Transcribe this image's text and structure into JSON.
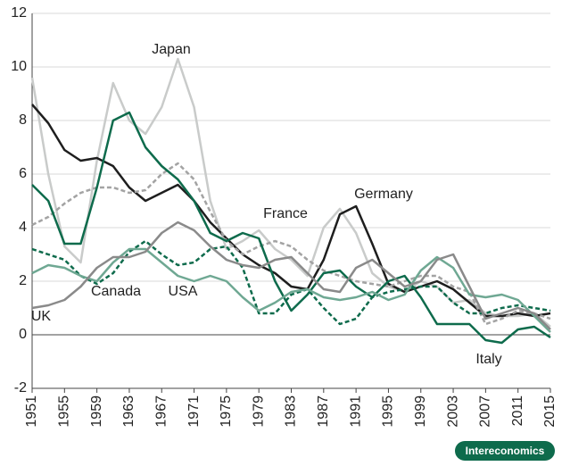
{
  "chart_data": {
    "type": "line",
    "x": [
      1951,
      1953,
      1955,
      1957,
      1959,
      1961,
      1963,
      1965,
      1967,
      1969,
      1971,
      1973,
      1975,
      1977,
      1979,
      1981,
      1983,
      1985,
      1987,
      1989,
      1991,
      1993,
      1995,
      1997,
      1999,
      2001,
      2003,
      2005,
      2007,
      2009,
      2011,
      2013,
      2015
    ],
    "xlim": [
      1951,
      2015
    ],
    "xticks": [
      1951,
      1955,
      1959,
      1963,
      1967,
      1971,
      1975,
      1979,
      1983,
      1987,
      1991,
      1995,
      1999,
      2003,
      2007,
      2011,
      2015
    ],
    "ylim": [
      -2,
      12
    ],
    "yticks": [
      -2,
      0,
      2,
      4,
      6,
      8,
      10,
      12
    ],
    "grid": true,
    "series": [
      {
        "name": "Japan",
        "color": "#c9cbca",
        "dash": false,
        "values": [
          9.6,
          6.0,
          3.3,
          2.7,
          6.5,
          9.4,
          8.0,
          7.5,
          8.5,
          10.3,
          8.5,
          5.0,
          3.2,
          3.5,
          3.9,
          3.2,
          2.8,
          2.2,
          4.0,
          4.7,
          3.8,
          2.3,
          1.8,
          1.6,
          2.0,
          1.8,
          1.2,
          1.3,
          0.8,
          0.7,
          0.7,
          0.8,
          0.3
        ]
      },
      {
        "name": "Germany",
        "color": "#1e1e1e",
        "dash": false,
        "values": [
          8.6,
          7.9,
          6.9,
          6.5,
          6.6,
          6.3,
          5.5,
          5.0,
          5.3,
          5.6,
          5.0,
          4.2,
          3.6,
          3.0,
          2.6,
          2.3,
          1.8,
          1.7,
          2.8,
          4.5,
          4.8,
          3.4,
          1.9,
          1.6,
          1.8,
          2.0,
          1.7,
          1.2,
          0.7,
          0.7,
          0.8,
          0.7,
          0.8
        ]
      },
      {
        "name": "France",
        "color": "#a3a3a3",
        "dash": true,
        "values": [
          4.1,
          4.4,
          4.9,
          5.3,
          5.5,
          5.5,
          5.3,
          5.4,
          6.0,
          6.4,
          5.8,
          4.6,
          3.5,
          3.0,
          3.3,
          3.5,
          3.3,
          2.8,
          2.4,
          2.2,
          2.0,
          1.9,
          1.8,
          2.0,
          2.2,
          2.2,
          1.8,
          1.6,
          0.4,
          0.6,
          0.9,
          0.8,
          0.6
        ]
      },
      {
        "name": "Italy",
        "color": "#0e6b4c",
        "dash": false,
        "values": [
          5.6,
          5.0,
          3.4,
          3.4,
          5.5,
          8.0,
          8.3,
          7.0,
          6.3,
          5.8,
          5.0,
          3.8,
          3.5,
          3.8,
          3.6,
          2.0,
          0.9,
          1.5,
          2.3,
          2.4,
          1.8,
          1.4,
          2.0,
          2.2,
          1.4,
          0.4,
          0.4,
          0.4,
          -0.2,
          -0.3,
          0.2,
          0.3,
          -0.1
        ]
      },
      {
        "name": "Canada",
        "color": "#0e6b4c",
        "dash": true,
        "values": [
          3.2,
          3.0,
          2.8,
          2.2,
          1.9,
          2.3,
          3.1,
          3.5,
          3.0,
          2.6,
          2.7,
          3.2,
          3.3,
          2.5,
          0.8,
          0.8,
          1.5,
          1.7,
          1.0,
          0.4,
          0.6,
          1.4,
          1.6,
          1.7,
          1.8,
          1.8,
          1.2,
          0.8,
          0.8,
          1.0,
          1.1,
          1.0,
          0.9
        ]
      },
      {
        "name": "USA",
        "color": "#6fa893",
        "dash": false,
        "values": [
          2.3,
          2.6,
          2.5,
          2.2,
          2.0,
          2.7,
          3.2,
          3.2,
          2.7,
          2.2,
          2.0,
          2.2,
          2.0,
          1.4,
          0.9,
          1.2,
          1.6,
          1.7,
          1.4,
          1.3,
          1.4,
          1.6,
          1.3,
          1.5,
          2.4,
          2.9,
          2.5,
          1.5,
          1.4,
          1.5,
          1.3,
          0.7,
          0.1
        ]
      },
      {
        "name": "UK",
        "color": "#8a8a8a",
        "dash": false,
        "values": [
          1.0,
          1.1,
          1.3,
          1.8,
          2.5,
          2.9,
          2.9,
          3.1,
          3.8,
          4.2,
          3.9,
          3.3,
          2.8,
          2.6,
          2.5,
          2.8,
          2.9,
          2.3,
          1.7,
          1.6,
          2.5,
          2.8,
          2.3,
          1.8,
          2.0,
          2.8,
          3.0,
          1.8,
          0.6,
          0.8,
          1.0,
          0.8,
          0.2
        ]
      }
    ]
  },
  "logo": "Intereconomics"
}
